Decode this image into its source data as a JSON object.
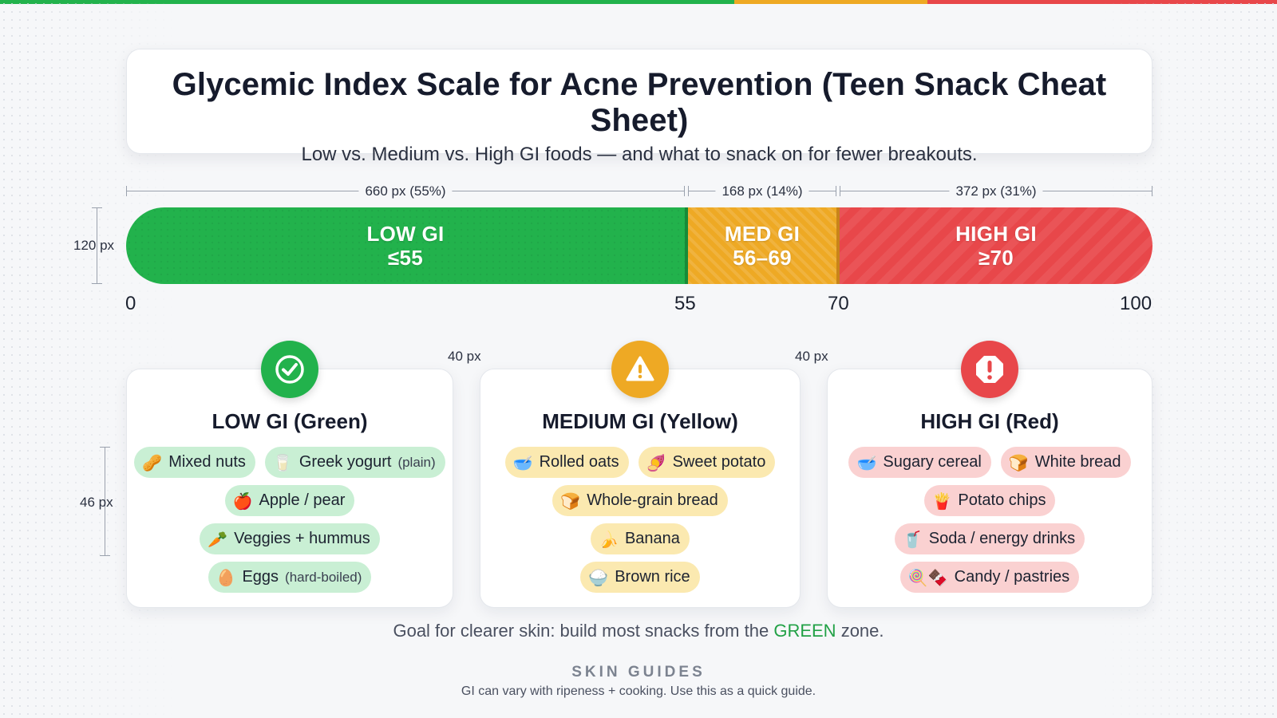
{
  "colors": {
    "green": "#22b24c",
    "yellow": "#eea924",
    "red": "#e8474a",
    "green_text": "#22a146"
  },
  "header": {
    "title": "Glycemic Index Scale for Acne Prevention (Teen Snack Cheat Sheet)",
    "subtitle": "Low vs. Medium vs. High GI foods — and what to snack on for fewer breakouts."
  },
  "scale": {
    "segments": [
      {
        "name": "LOW GI",
        "range": "≤55",
        "width_label": "660 px (55%)",
        "share": 0.55,
        "color": "#22b24c"
      },
      {
        "name": "MED GI",
        "range": "56–69",
        "width_label": "168 px (14%)",
        "share": 0.14,
        "color": "#eea924"
      },
      {
        "name": "HIGH GI",
        "range": "≥70",
        "width_label": "372 px (31%)",
        "share": 0.31,
        "color": "#e8474a"
      }
    ],
    "height_label": "120 px",
    "axis": [
      "0",
      "55",
      "70",
      "100"
    ]
  },
  "gap_label": "40 px",
  "chip_height_label": "46 px",
  "cards": [
    {
      "title": "LOW GI (Green)",
      "icon": "check-circle-icon",
      "chip_rows": [
        [
          {
            "emoji": "🥜",
            "label": "Mixed nuts",
            "note": ""
          },
          {
            "emoji": "🥛",
            "label": "Greek yogurt",
            "note": "(plain)"
          }
        ],
        [
          {
            "emoji": "🍎",
            "label": "Apple / pear",
            "note": ""
          }
        ],
        [
          {
            "emoji": "🥕",
            "label": "Veggies + hummus",
            "note": ""
          }
        ],
        [
          {
            "emoji": "🥚",
            "label": "Eggs",
            "note": "(hard-boiled)"
          }
        ]
      ]
    },
    {
      "title": "MEDIUM GI (Yellow)",
      "icon": "warning-triangle-icon",
      "chip_rows": [
        [
          {
            "emoji": "🥣",
            "label": "Rolled oats",
            "note": ""
          },
          {
            "emoji": "🍠",
            "label": "Sweet potato",
            "note": ""
          }
        ],
        [
          {
            "emoji": "🍞",
            "label": "Whole-grain bread",
            "note": ""
          }
        ],
        [
          {
            "emoji": "🍌",
            "label": "Banana",
            "note": ""
          }
        ],
        [
          {
            "emoji": "🍚",
            "label": "Brown rice",
            "note": ""
          }
        ]
      ]
    },
    {
      "title": "HIGH GI (Red)",
      "icon": "alert-octagon-icon",
      "chip_rows": [
        [
          {
            "emoji": "🥣",
            "label": "Sugary cereal",
            "note": ""
          },
          {
            "emoji": "🍞",
            "label": "White bread",
            "note": ""
          }
        ],
        [
          {
            "emoji": "🍟",
            "label": "Potato chips",
            "note": ""
          }
        ],
        [
          {
            "emoji": "🥤",
            "label": "Soda / energy drinks",
            "note": ""
          }
        ],
        [
          {
            "emoji": "🍭🍫",
            "label": "Candy / pastries",
            "note": ""
          }
        ]
      ]
    }
  ],
  "goal": {
    "before": "Goal for clearer skin: build most snacks from the ",
    "highlight": "GREEN",
    "after": " zone."
  },
  "brand": "SKIN GUIDES",
  "footnote": "GI can vary with ripeness + cooking. Use this as a quick guide."
}
